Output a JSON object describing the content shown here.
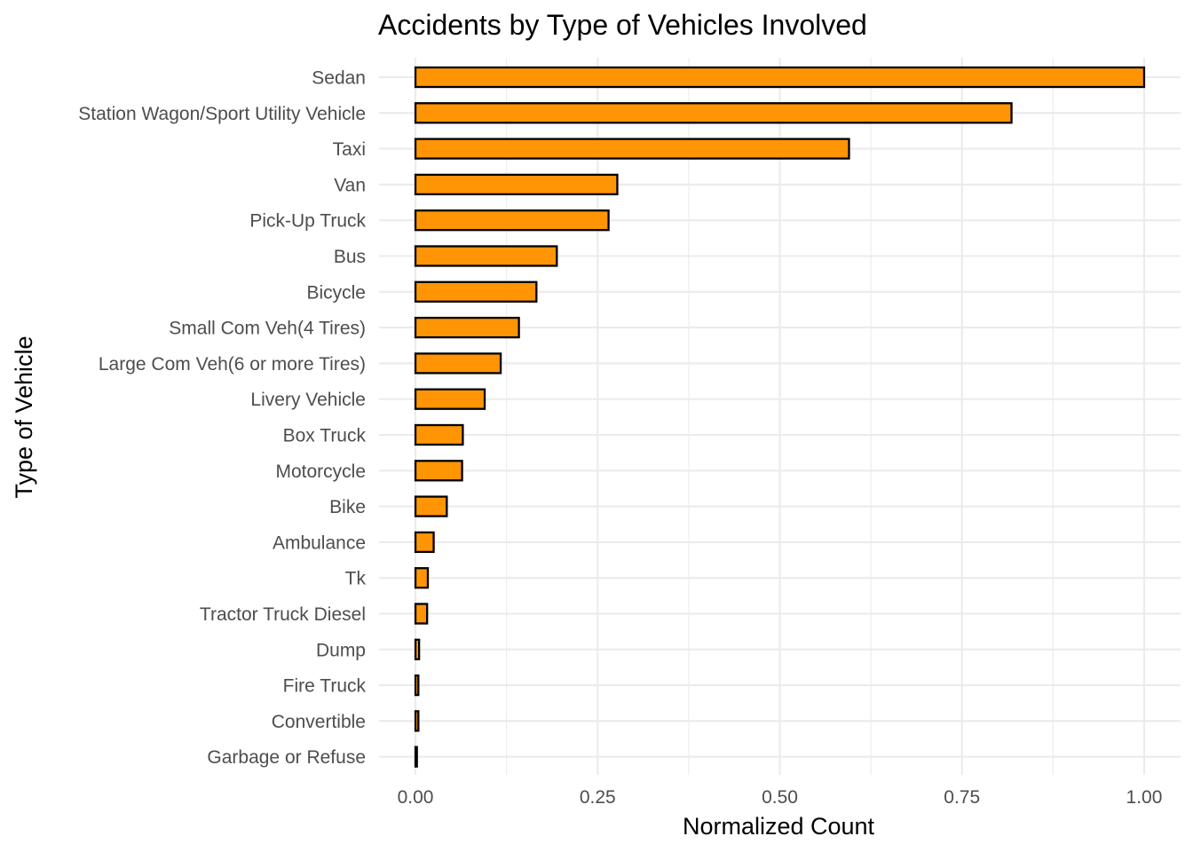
{
  "chart_data": {
    "type": "bar",
    "orientation": "horizontal",
    "title": "Accidents by Type of Vehicles Involved",
    "xlabel": "Normalized Count",
    "ylabel": "Type of Vehicle",
    "xlim": [
      -0.05,
      1.05
    ],
    "x_ticks": [
      0,
      0.25,
      0.5,
      0.75,
      1
    ],
    "x_tick_labels": [
      "0.00",
      "0.25",
      "0.50",
      "0.75",
      "1.00"
    ],
    "grid": true,
    "legend": "none",
    "bar_color": "#FF9505",
    "bar_outline": "#000000",
    "categories": [
      "Sedan",
      "Station Wagon/Sport Utility Vehicle",
      "Taxi",
      "Van",
      "Pick-Up Truck",
      "Bus",
      "Bicycle",
      "Small Com Veh(4 Tires)",
      "Large Com Veh(6 or more Tires)",
      "Livery Vehicle",
      "Box Truck",
      "Motorcycle",
      "Bike",
      "Ambulance",
      "Tk",
      "Tractor Truck Diesel",
      "Dump",
      "Fire Truck",
      "Convertible",
      "Garbage or Refuse"
    ],
    "values": [
      1.0,
      0.818,
      0.595,
      0.277,
      0.265,
      0.194,
      0.166,
      0.142,
      0.117,
      0.095,
      0.065,
      0.064,
      0.043,
      0.025,
      0.017,
      0.016,
      0.005,
      0.004,
      0.004,
      0.002
    ]
  }
}
